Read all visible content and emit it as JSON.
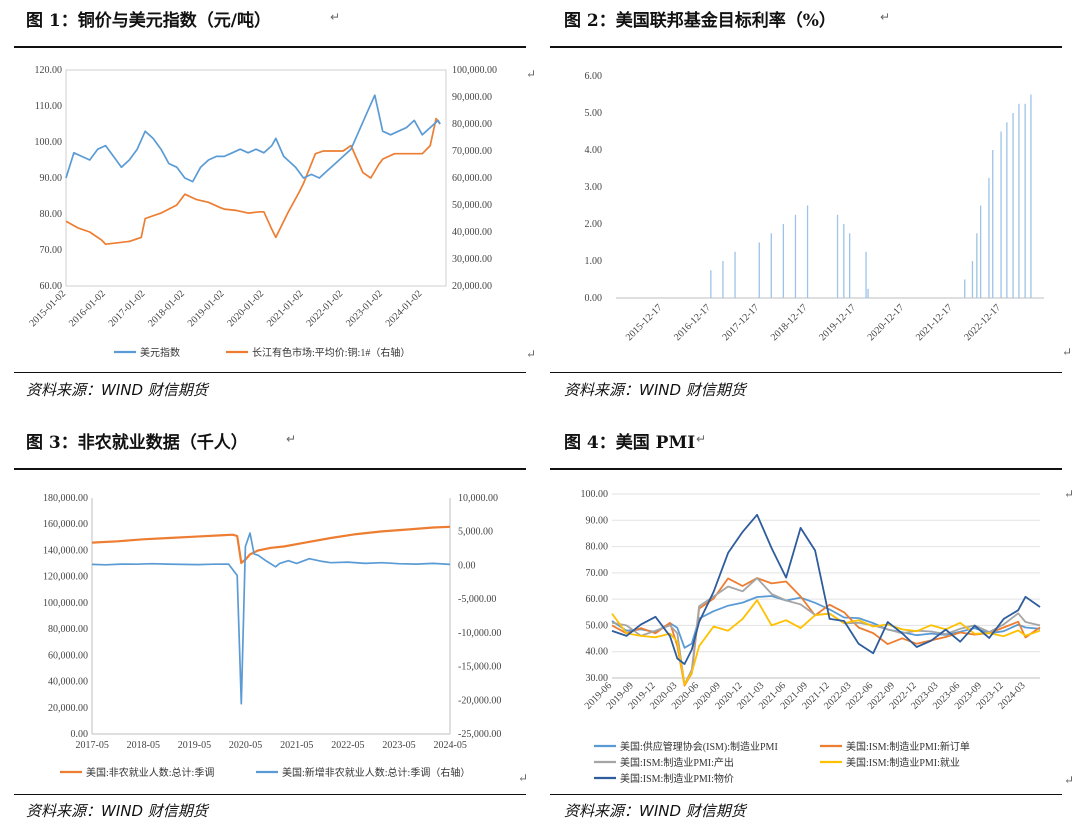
{
  "return_mark": "↵",
  "figures": [
    {
      "title": "图 1：铜价与美元指数（元/吨）",
      "source": "资料来源：WIND 财信期货"
    },
    {
      "title": "图 2：美国联邦基金目标利率（%）",
      "source": "资料来源：WIND 财信期货"
    },
    {
      "title": "图 3：非农就业数据（千人）",
      "source": "资料来源：WIND 财信期货"
    },
    {
      "title": "图 4：美国 PMI",
      "source": "资料来源：WIND 财信期货"
    }
  ],
  "chart_data": [
    {
      "type": "line",
      "title": "",
      "x_ticks": [
        "2015-01-02",
        "2016-01-02",
        "2017-01-02",
        "2018-01-02",
        "2019-01-02",
        "2020-01-02",
        "2021-01-02",
        "2022-01-02",
        "2023-01-02",
        "2024-01-02"
      ],
      "y_left_ticks": [
        "60.00",
        "70.00",
        "80.00",
        "90.00",
        "100.00",
        "110.00",
        "120.00"
      ],
      "y_right_ticks": [
        "20,000.00",
        "30,000.00",
        "40,000.00",
        "50,000.00",
        "60,000.00",
        "70,000.00",
        "80,000.00",
        "90,000.00",
        "100,000.00"
      ],
      "ylim_left": [
        60,
        120
      ],
      "ylim_right": [
        20000,
        100000
      ],
      "legend_position": "bottom",
      "series": [
        {
          "name": "美元指数",
          "color": "#5b9bd5",
          "axis": "left",
          "x": [
            2015.0,
            2015.2,
            2015.4,
            2015.6,
            2015.8,
            2016.0,
            2016.2,
            2016.4,
            2016.6,
            2016.8,
            2017.0,
            2017.2,
            2017.4,
            2017.6,
            2017.8,
            2018.0,
            2018.2,
            2018.4,
            2018.6,
            2018.8,
            2019.0,
            2019.2,
            2019.4,
            2019.6,
            2019.8,
            2020.0,
            2020.2,
            2020.3,
            2020.5,
            2020.8,
            2021.0,
            2021.2,
            2021.4,
            2021.6,
            2021.8,
            2022.0,
            2022.2,
            2022.4,
            2022.6,
            2022.8,
            2023.0,
            2023.2,
            2023.4,
            2023.6,
            2023.8,
            2024.0,
            2024.2,
            2024.4,
            2024.45
          ],
          "values": [
            90,
            97,
            96,
            95,
            98,
            99,
            96,
            93,
            95,
            98,
            103,
            101,
            98,
            94,
            93,
            90,
            89,
            93,
            95,
            96,
            96,
            97,
            98,
            97,
            98,
            97,
            99,
            101,
            96,
            93,
            90,
            91,
            90,
            92,
            94,
            96,
            98,
            103,
            108,
            113,
            103,
            102,
            103,
            104,
            106,
            102,
            104,
            106,
            105
          ]
        },
        {
          "name": "长江有色市场:平均价:铜:1#（右轴）",
          "color": "#ed7d31",
          "axis": "right",
          "x": [
            2015.0,
            2015.3,
            2015.6,
            2015.9,
            2016.0,
            2016.3,
            2016.6,
            2016.9,
            2017.0,
            2017.4,
            2017.8,
            2018.0,
            2018.3,
            2018.6,
            2018.9,
            2019.0,
            2019.3,
            2019.6,
            2019.9,
            2020.0,
            2020.2,
            2020.3,
            2020.6,
            2020.9,
            2021.0,
            2021.3,
            2021.5,
            2021.8,
            2022.0,
            2022.2,
            2022.5,
            2022.7,
            2022.9,
            2023.0,
            2023.3,
            2023.6,
            2023.9,
            2024.0,
            2024.2,
            2024.35,
            2024.45
          ],
          "values": [
            44000,
            41500,
            40000,
            37000,
            35500,
            36000,
            36500,
            38000,
            45000,
            47000,
            50000,
            54000,
            52000,
            51000,
            49000,
            48500,
            48000,
            47000,
            47500,
            47500,
            41000,
            38000,
            47000,
            55000,
            58000,
            69000,
            70000,
            70000,
            70000,
            72000,
            62000,
            60000,
            65000,
            67000,
            69000,
            69000,
            69000,
            69000,
            72000,
            82000,
            80000
          ]
        }
      ]
    },
    {
      "type": "bar",
      "title": "",
      "x_ticks": [
        "2015-12-17",
        "2016-12-17",
        "2017-12-17",
        "2018-12-17",
        "2019-12-17",
        "2020-12-17",
        "2021-12-17",
        "2022-12-17"
      ],
      "y_ticks": [
        "0.00",
        "1.00",
        "2.00",
        "3.00",
        "4.00",
        "5.00",
        "6.00"
      ],
      "ylim": [
        0,
        6
      ],
      "xlim": [
        2015.0,
        2023.85
      ],
      "series": [
        {
          "name": "",
          "color": "#9dc3e6",
          "x": [
            2016.96,
            2017.21,
            2017.46,
            2017.96,
            2018.21,
            2018.46,
            2018.71,
            2018.96,
            2019.58,
            2019.71,
            2019.83,
            2020.17,
            2020.21,
            2022.21,
            2022.37,
            2022.46,
            2022.54,
            2022.71,
            2022.79,
            2022.96,
            2023.08,
            2023.21,
            2023.33,
            2023.46,
            2023.58
          ],
          "values": [
            0.75,
            1.0,
            1.25,
            1.5,
            1.75,
            2.0,
            2.25,
            2.5,
            2.25,
            2.0,
            1.75,
            1.25,
            0.25,
            0.5,
            1.0,
            1.75,
            2.5,
            3.25,
            4.0,
            4.5,
            4.75,
            5.0,
            5.25,
            5.25,
            5.5
          ]
        }
      ]
    },
    {
      "type": "line",
      "title": "",
      "x_ticks": [
        "2017-05",
        "2018-05",
        "2019-05",
        "2020-05",
        "2021-05",
        "2022-05",
        "2023-05",
        "2024-05"
      ],
      "y_left_ticks": [
        "0.00",
        "20,000.00",
        "40,000.00",
        "60,000.00",
        "80,000.00",
        "100,000.00",
        "120,000.00",
        "140,000.00",
        "160,000.00",
        "180,000.00"
      ],
      "y_right_ticks": [
        "-25,000.00",
        "-20,000.00",
        "-15,000.00",
        "-10,000.00",
        "-5,000.00",
        "0.00",
        "5,000.00",
        "10,000.00"
      ],
      "ylim_left": [
        0,
        180000
      ],
      "ylim_right": [
        -25000,
        10000
      ],
      "xlim": [
        2017.33,
        2024.33
      ],
      "legend_position": "bottom",
      "series": [
        {
          "name": "美国:非农就业人数:总计:季调",
          "color": "#ed7d31",
          "axis": "left",
          "x": [
            2017.33,
            2017.83,
            2018.33,
            2018.83,
            2019.33,
            2019.83,
            2020.08,
            2020.17,
            2020.25,
            2020.33,
            2020.42,
            2020.58,
            2020.83,
            2021.08,
            2021.5,
            2022.0,
            2022.5,
            2023.0,
            2023.5,
            2024.0,
            2024.33
          ],
          "values": [
            146000,
            147000,
            148500,
            149500,
            150500,
            151500,
            152000,
            151000,
            130500,
            133000,
            137000,
            140000,
            142000,
            143000,
            146000,
            149500,
            152500,
            154500,
            156000,
            157500,
            158000
          ]
        },
        {
          "name": "美国:新增非农就业人数:总计:季调（右轴）",
          "color": "#5b9bd5",
          "axis": "right",
          "x": [
            2017.33,
            2017.6,
            2017.9,
            2018.2,
            2018.5,
            2018.8,
            2019.1,
            2019.4,
            2019.7,
            2020.0,
            2020.17,
            2020.25,
            2020.33,
            2020.42,
            2020.5,
            2020.58,
            2020.75,
            2020.92,
            2021.0,
            2021.17,
            2021.33,
            2021.58,
            2021.83,
            2022.0,
            2022.33,
            2022.67,
            2023.0,
            2023.33,
            2023.67,
            2024.0,
            2024.33
          ],
          "values": [
            150,
            100,
            200,
            180,
            250,
            200,
            150,
            120,
            180,
            200,
            -1500,
            -20500,
            2800,
            4800,
            1700,
            1500,
            600,
            -200,
            300,
            700,
            300,
            1000,
            600,
            400,
            500,
            300,
            400,
            250,
            200,
            300,
            150
          ]
        }
      ]
    },
    {
      "type": "line",
      "title": "",
      "x_ticks": [
        "2019-06",
        "2019-09",
        "2019-12",
        "2020-03",
        "2020-06",
        "2020-09",
        "2020-12",
        "2021-03",
        "2021-06",
        "2021-09",
        "2021-12",
        "2022-03",
        "2022-06",
        "2022-09",
        "2022-12",
        "2023-03",
        "2023-06",
        "2023-09",
        "2023-12",
        "2024-03"
      ],
      "y_ticks": [
        "30.00",
        "40.00",
        "50.00",
        "60.00",
        "70.00",
        "80.00",
        "90.00",
        "100.00"
      ],
      "ylim": [
        30,
        100
      ],
      "xlim": [
        0,
        59
      ],
      "legend_position": "bottom",
      "series": [
        {
          "name": "美国:供应管理协会(ISM):制造业PMI",
          "color": "#5b9bd5",
          "x": [
            0,
            2,
            4,
            6,
            8,
            9,
            10,
            11,
            12,
            14,
            16,
            18,
            20,
            22,
            24,
            26,
            28,
            30,
            32,
            34,
            36,
            38,
            40,
            42,
            44,
            46,
            48,
            50,
            52,
            54,
            56,
            57,
            59
          ],
          "values": [
            51.7,
            48,
            48.5,
            47.5,
            50.9,
            49.1,
            41.5,
            43.1,
            52.6,
            55.4,
            57.5,
            58.7,
            60.8,
            61.2,
            59.5,
            60.6,
            58.6,
            56.1,
            53,
            52.8,
            50.9,
            48.4,
            47.4,
            46.3,
            46.9,
            46.4,
            47.6,
            49,
            47,
            47.8,
            50.3,
            49.2,
            48.7
          ]
        },
        {
          "name": "美国:ISM:制造业PMI:新订单",
          "color": "#ed7d31",
          "x": [
            0,
            2,
            4,
            6,
            8,
            9,
            10,
            11,
            12,
            14,
            16,
            18,
            20,
            22,
            24,
            26,
            28,
            30,
            32,
            34,
            36,
            38,
            40,
            42,
            44,
            46,
            48,
            50,
            52,
            54,
            56,
            57,
            59
          ],
          "values": [
            50,
            47,
            49,
            47,
            51,
            42.2,
            27.1,
            31.8,
            56.4,
            60.2,
            67.9,
            65,
            68,
            66,
            66.7,
            61,
            53.8,
            57.9,
            55,
            49.2,
            47.1,
            42.9,
            45.1,
            43,
            44.3,
            45.6,
            47.3,
            46.5,
            47.1,
            49.2,
            51.4,
            45.4,
            49.3
          ]
        },
        {
          "name": "美国:ISM:制造业PMI:产出",
          "color": "#a5a5a5",
          "x": [
            0,
            2,
            4,
            6,
            8,
            9,
            10,
            11,
            12,
            14,
            16,
            18,
            20,
            22,
            24,
            26,
            28,
            30,
            32,
            34,
            36,
            38,
            40,
            42,
            44,
            46,
            48,
            50,
            52,
            54,
            56,
            57,
            59
          ],
          "values": [
            51,
            50,
            46,
            48,
            50,
            47,
            27.5,
            33.2,
            57.3,
            61,
            64.8,
            63,
            68,
            62,
            59.5,
            58,
            54,
            54.5,
            50.8,
            51,
            50,
            48.5,
            47,
            48,
            47.7,
            46.7,
            48.7,
            50,
            47.5,
            50.4,
            54.6,
            51.3,
            50
          ]
        },
        {
          "name": "美国:ISM:制造业PMI:就业",
          "color": "#ffc000",
          "x": [
            0,
            2,
            4,
            6,
            8,
            9,
            10,
            11,
            12,
            14,
            16,
            18,
            20,
            22,
            24,
            26,
            28,
            30,
            32,
            34,
            36,
            38,
            40,
            42,
            44,
            46,
            48,
            50,
            52,
            54,
            56,
            57,
            59
          ],
          "values": [
            54.5,
            47,
            46,
            45.5,
            46.9,
            43.8,
            27.5,
            32.1,
            42.1,
            49.6,
            48,
            52.5,
            59.6,
            50,
            52,
            49,
            53.9,
            54.5,
            50.9,
            52,
            49.6,
            50.4,
            48.5,
            47.8,
            50.1,
            48.5,
            51,
            46.8,
            47.1,
            45.9,
            48.1,
            46.1,
            48
          ]
        },
        {
          "name": "美国:ISM:制造业PMI:物价",
          "color": "#2e5c9c",
          "x": [
            0,
            2,
            4,
            6,
            8,
            9,
            10,
            11,
            12,
            14,
            16,
            18,
            20,
            22,
            24,
            26,
            28,
            30,
            32,
            34,
            36,
            38,
            40,
            42,
            44,
            46,
            48,
            50,
            52,
            54,
            56,
            57,
            59
          ],
          "values": [
            47.9,
            46,
            50.4,
            53.3,
            45.9,
            37.4,
            35.3,
            40.8,
            51.3,
            62.8,
            77.6,
            85.6,
            92.1,
            79.4,
            68.2,
            87.1,
            78.5,
            52.5,
            51.7,
            43,
            39.4,
            51.3,
            47,
            41.8,
            44.2,
            48.4,
            43.8,
            49.9,
            45.2,
            52.5,
            55.8,
            60.9,
            57
          ]
        }
      ]
    }
  ]
}
